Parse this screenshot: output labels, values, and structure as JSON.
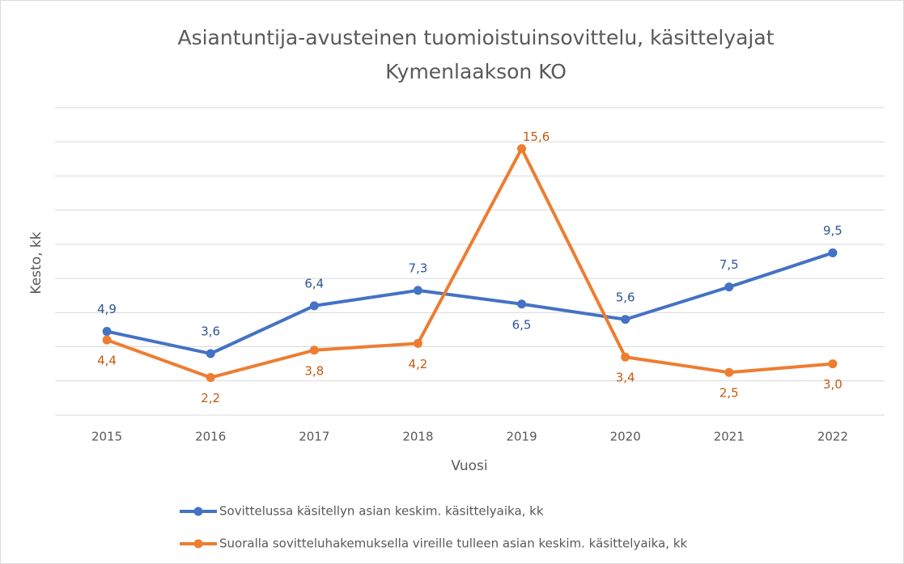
{
  "chart_data": {
    "type": "line",
    "title": [
      "Asiantuntija-avusteinen tuomioistuinsovittelu, käsittelyajat",
      "Kymenlaakson KO"
    ],
    "x_label": "Vuosi",
    "y_label": "Kesto, kk",
    "categories": [
      "2015",
      "2016",
      "2017",
      "2018",
      "2019",
      "2020",
      "2021",
      "2022"
    ],
    "series": [
      {
        "name": "Sovittelussa käsitellyn asian keskim. käsittelyaika, kk",
        "color": "#4472c4",
        "values": [
          4.9,
          3.6,
          6.4,
          7.3,
          6.5,
          5.6,
          7.5,
          9.5
        ],
        "value_labels": [
          "4,9",
          "3,6",
          "6,4",
          "7,3",
          "6,5",
          "5,6",
          "7,5",
          "9,5"
        ]
      },
      {
        "name": "Suoralla sovitteluhakemuksella vireille tulleen asian keskim. käsittelyaika, kk",
        "color": "#ed7d31",
        "values": [
          4.4,
          2.2,
          3.8,
          4.2,
          15.6,
          3.4,
          2.5,
          3.0
        ],
        "value_labels": [
          "4,4",
          "2,2",
          "3,8",
          "4,2",
          "15,6",
          "3,4",
          "2,5",
          "3,0"
        ]
      }
    ],
    "ylim": [
      0,
      18
    ],
    "yticks": [
      0,
      2,
      4,
      6,
      8,
      10,
      12,
      14,
      16,
      18
    ],
    "grid": true,
    "legend": "bottom"
  }
}
